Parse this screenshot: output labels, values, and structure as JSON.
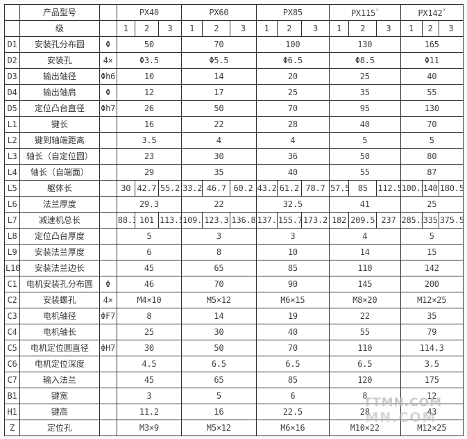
{
  "colors": {
    "border": "#2f2f2f",
    "text": "#3c3c3c",
    "background": "#ffffff",
    "watermark": "#b9b9b9"
  },
  "watermark": {
    "text": "TTMN.COM"
  },
  "table": {
    "header": {
      "product_model_label": "产品型号",
      "level_label": "级",
      "models": [
        {
          "name": "PX40",
          "sup": "",
          "levels": [
            "1",
            "2",
            "3"
          ]
        },
        {
          "name": "PX60",
          "sup": "",
          "levels": [
            "1",
            "2",
            "3"
          ]
        },
        {
          "name": "PX85",
          "sup": "",
          "levels": [
            "1",
            "2",
            "3"
          ]
        },
        {
          "name": "PX115",
          "sup": "¹",
          "levels": [
            "1",
            "2",
            "3"
          ]
        },
        {
          "name": "PX142",
          "sup": "²",
          "levels": [
            "1",
            "2",
            "3"
          ]
        }
      ]
    },
    "rows": [
      {
        "id": "D1",
        "name": "安装孔分布圆",
        "symbol": "Φ",
        "values": [
          [
            "50"
          ],
          [
            "70"
          ],
          [
            "100"
          ],
          [
            "130"
          ],
          [
            "165"
          ]
        ]
      },
      {
        "id": "D2",
        "name": "安装孔",
        "symbol": "4×",
        "values": [
          [
            "Φ3.5"
          ],
          [
            "Φ5.5"
          ],
          [
            "Φ6.5"
          ],
          [
            "Φ8.5"
          ],
          [
            "Φ11"
          ]
        ]
      },
      {
        "id": "D3",
        "name": "输出轴径",
        "symbol": "Φh6",
        "values": [
          [
            "10"
          ],
          [
            "14"
          ],
          [
            "20"
          ],
          [
            "25"
          ],
          [
            "40"
          ]
        ]
      },
      {
        "id": "D4",
        "name": "输出轴肩",
        "symbol": "Φ",
        "values": [
          [
            "12"
          ],
          [
            "17"
          ],
          [
            "25"
          ],
          [
            "35"
          ],
          [
            "55"
          ]
        ]
      },
      {
        "id": "D5",
        "name": "定位凸台直径",
        "symbol": "Φh7",
        "values": [
          [
            "26"
          ],
          [
            "50"
          ],
          [
            "70"
          ],
          [
            "95"
          ],
          [
            "130"
          ]
        ]
      },
      {
        "id": "L1",
        "name": "键长",
        "symbol": "",
        "values": [
          [
            "16"
          ],
          [
            "22"
          ],
          [
            "28"
          ],
          [
            "40"
          ],
          [
            "70"
          ]
        ]
      },
      {
        "id": "L2",
        "name": "键到轴端距离",
        "symbol": "",
        "values": [
          [
            "3.5"
          ],
          [
            "4"
          ],
          [
            "4"
          ],
          [
            "5"
          ],
          [
            "5"
          ]
        ]
      },
      {
        "id": "L3",
        "name": "轴长（自定位圆）",
        "symbol": "",
        "values": [
          [
            "23"
          ],
          [
            "30"
          ],
          [
            "36"
          ],
          [
            "50"
          ],
          [
            "80"
          ]
        ]
      },
      {
        "id": "L4",
        "name": "轴长（自端面）",
        "symbol": "",
        "values": [
          [
            "29"
          ],
          [
            "35"
          ],
          [
            "40"
          ],
          [
            "55"
          ],
          [
            "87"
          ]
        ]
      },
      {
        "id": "L5",
        "name": "躯体长",
        "symbol": "",
        "values": [
          [
            "30",
            "42.7",
            "55.2"
          ],
          [
            "33.2",
            "46.7",
            "60.2"
          ],
          [
            "43.2",
            "61.2",
            "78.7"
          ],
          [
            "57.5",
            "85",
            "112.5"
          ],
          [
            "100.5",
            "140",
            "180.5"
          ]
        ]
      },
      {
        "id": "L6",
        "name": "法兰厚度",
        "symbol": "",
        "values": [
          [
            "29.3"
          ],
          [
            "22"
          ],
          [
            "32.5"
          ],
          [
            "41"
          ],
          [
            "25"
          ]
        ]
      },
      {
        "id": "L7",
        "name": "减速机总长",
        "symbol": "",
        "values": [
          [
            "88.3",
            "101",
            "113.5"
          ],
          [
            "109.8",
            "123.3",
            "136.8"
          ],
          [
            "137.7",
            "155.7",
            "173.2"
          ],
          [
            "182",
            "209.5",
            "237"
          ],
          [
            "285.5",
            "335",
            "375.5"
          ]
        ]
      },
      {
        "id": "L8",
        "name": "定位凸台厚度",
        "symbol": "",
        "values": [
          [
            "5"
          ],
          [
            "3"
          ],
          [
            "3"
          ],
          [
            "4"
          ],
          [
            "5"
          ]
        ]
      },
      {
        "id": "L9",
        "name": "安装法兰厚度",
        "symbol": "",
        "values": [
          [
            "6"
          ],
          [
            "8"
          ],
          [
            "10"
          ],
          [
            "14"
          ],
          [
            "15"
          ]
        ]
      },
      {
        "id": "L10",
        "name": "安装法兰边长",
        "symbol": "",
        "values": [
          [
            "45"
          ],
          [
            "65"
          ],
          [
            "85"
          ],
          [
            "110"
          ],
          [
            "142"
          ]
        ]
      },
      {
        "id": "C1",
        "name": "电机安装孔分布圆",
        "symbol": "Φ",
        "values": [
          [
            "46"
          ],
          [
            "70"
          ],
          [
            "90"
          ],
          [
            "145"
          ],
          [
            "200"
          ]
        ]
      },
      {
        "id": "C2",
        "name": "安装螺孔",
        "symbol": "4×",
        "values": [
          [
            "M4×10"
          ],
          [
            "M5×12"
          ],
          [
            "M6×15"
          ],
          [
            "M8×20"
          ],
          [
            "M12×25"
          ]
        ]
      },
      {
        "id": "C3",
        "name": "电机轴径",
        "symbol": "ΦF7",
        "values": [
          [
            "8"
          ],
          [
            "14"
          ],
          [
            "19"
          ],
          [
            "22"
          ],
          [
            "35"
          ]
        ]
      },
      {
        "id": "C4",
        "name": "电机轴长",
        "symbol": "",
        "values": [
          [
            "25"
          ],
          [
            "30"
          ],
          [
            "40"
          ],
          [
            "55"
          ],
          [
            "79"
          ]
        ]
      },
      {
        "id": "C5",
        "name": "电机定位圆直径",
        "symbol": "ΦH7",
        "values": [
          [
            "30"
          ],
          [
            "50"
          ],
          [
            "70"
          ],
          [
            "110"
          ],
          [
            "114.3"
          ]
        ]
      },
      {
        "id": "C6",
        "name": "电机定位深度",
        "symbol": "",
        "values": [
          [
            "4.5"
          ],
          [
            "6.5"
          ],
          [
            "6.5"
          ],
          [
            "6.5"
          ],
          [
            "3.5"
          ]
        ]
      },
      {
        "id": "C7",
        "name": "输入法兰",
        "symbol": "",
        "values": [
          [
            "45"
          ],
          [
            "65"
          ],
          [
            "85"
          ],
          [
            "120"
          ],
          [
            "175"
          ]
        ]
      },
      {
        "id": "B1",
        "name": "键宽",
        "symbol": "",
        "values": [
          [
            "3"
          ],
          [
            "5"
          ],
          [
            "6"
          ],
          [
            "8"
          ],
          [
            "12"
          ]
        ]
      },
      {
        "id": "H1",
        "name": "键高",
        "symbol": "",
        "values": [
          [
            "11.2"
          ],
          [
            "16"
          ],
          [
            "22.5"
          ],
          [
            "28"
          ],
          [
            "43"
          ]
        ]
      },
      {
        "id": "Z",
        "name": "定位孔",
        "symbol": "",
        "values": [
          [
            "M3×9"
          ],
          [
            "M5×12"
          ],
          [
            "M6×16"
          ],
          [
            "M10×22"
          ],
          [
            "M12×25"
          ]
        ]
      }
    ]
  }
}
